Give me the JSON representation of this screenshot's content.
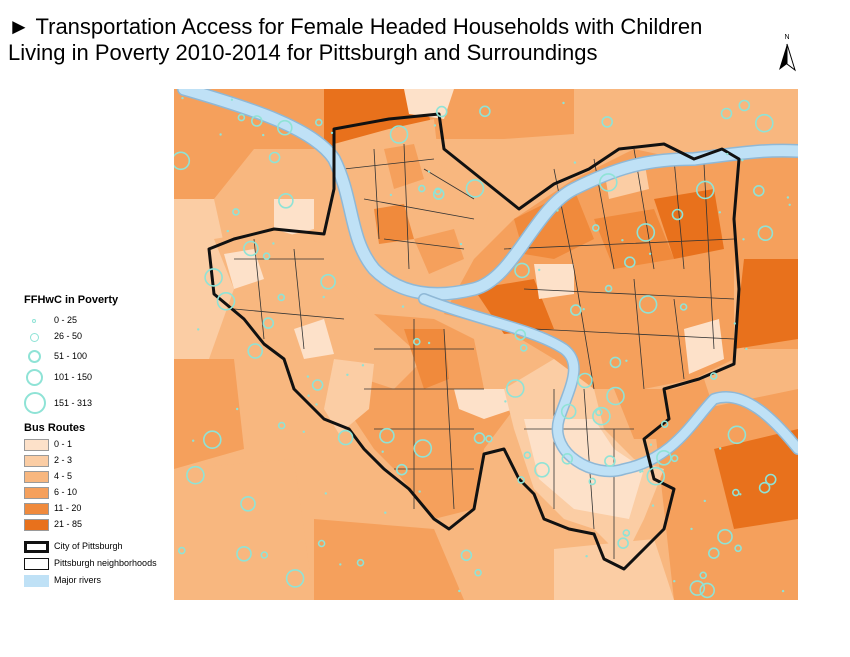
{
  "title": {
    "line1": "► Transportation Access for Female Headed Households with Children",
    "line2": "Living in Poverty 2010-2014 for Pittsburgh and Surroundings"
  },
  "north_arrow": {
    "label": "N",
    "icon": "north-arrow-icon"
  },
  "legend": {
    "poverty_title": "FFHwC in Poverty",
    "poverty_classes": [
      {
        "label": "0 - 25"
      },
      {
        "label": "26 - 50"
      },
      {
        "label": "51 - 100"
      },
      {
        "label": "101 - 150"
      },
      {
        "label": "151 - 313"
      }
    ],
    "bus_title": "Bus Routes",
    "bus_classes": [
      {
        "label": "0 - 1",
        "color": "#fde1c9"
      },
      {
        "label": "2 - 3",
        "color": "#fbcda4"
      },
      {
        "label": "4 - 5",
        "color": "#f8b77f"
      },
      {
        "label": "6 - 10",
        "color": "#f5a05c"
      },
      {
        "label": "11 - 20",
        "color": "#f08a3c"
      },
      {
        "label": "21 - 85",
        "color": "#e8711c"
      }
    ],
    "other_items": [
      {
        "label": "City of Pittsburgh",
        "style": "thick-outline"
      },
      {
        "label": "Pittsburgh neighborhoods",
        "style": "thin-outline"
      },
      {
        "label": "Major rivers",
        "style": "river"
      }
    ]
  },
  "colors": {
    "river": "#bfe1f6",
    "river_outline": "#8fb8d6",
    "circle": "#8fe3d6",
    "boundary": "#111111"
  }
}
